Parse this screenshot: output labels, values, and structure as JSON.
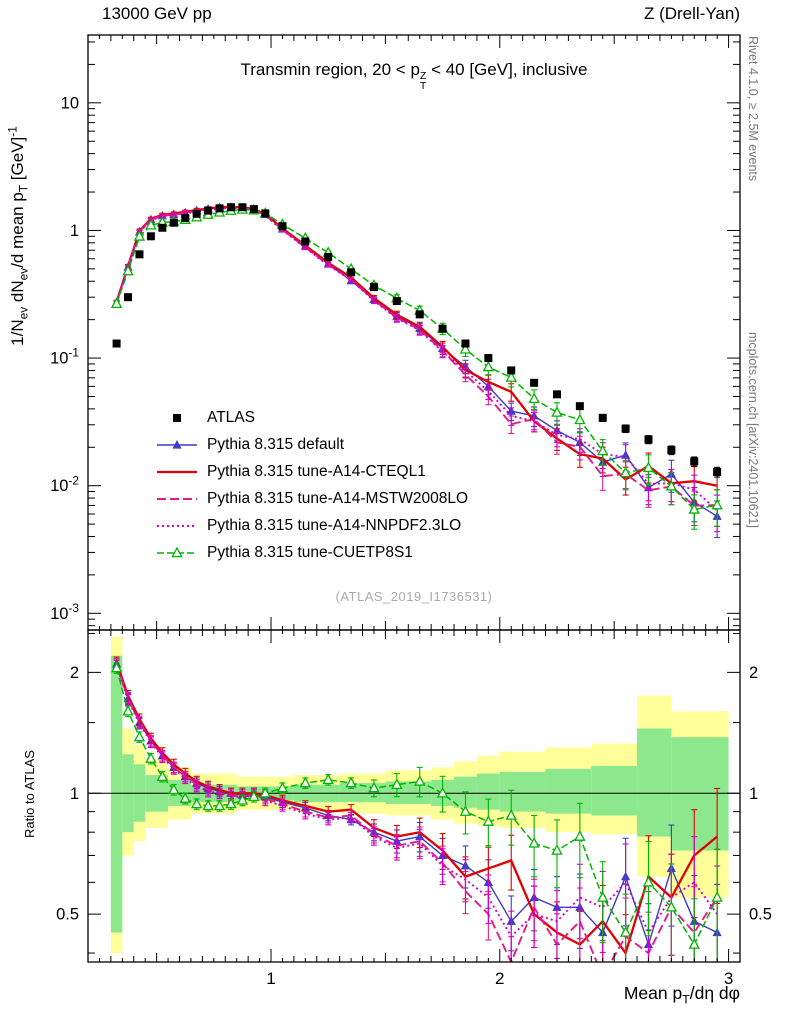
{
  "header": {
    "left": "13000 GeV pp",
    "right": "Z (Drell-Yan)"
  },
  "side_captions": {
    "top_right": "Rivet 4.1.0, ≥ 2.5M events",
    "bottom_right": "mcplots.cern.ch [arXiv:2401.10621]"
  },
  "watermark": "(ATLAS_2019_I1736531)",
  "chart_data": {
    "type": "line",
    "title_tex": "Transmin region, 20 < p_{T}^{Z} < 40 [GeV], inclusive",
    "xlabel_tex": "Mean p_{T}/dη dφ",
    "ylabel_tex": "1/N_{ev} dN_{ev}/d mean p_{T} [GeV]^{-1}",
    "ratio_ylabel": "Ratio to ATLAS",
    "x_range": [
      0.2,
      3.05
    ],
    "y_range_log": [
      0.00074,
      34
    ],
    "ratio_range_log": [
      0.38,
      2.55
    ],
    "x_major_ticks": [
      1,
      2,
      3
    ],
    "y_ticks": [
      {
        "v": 10,
        "label": "10"
      },
      {
        "v": 1,
        "label": "1"
      },
      {
        "v": 0.1,
        "label": "10^{-1}"
      },
      {
        "v": 0.01,
        "label": "10^{-2}"
      },
      {
        "v": 0.001,
        "label": "10^{-3}"
      }
    ],
    "ratio_ticks": [
      {
        "v": 2,
        "label": "2"
      },
      {
        "v": 1,
        "label": "1"
      },
      {
        "v": 0.5,
        "label": "0.5"
      }
    ],
    "ratio_minor_ticks": [
      0.4,
      0.6,
      0.7,
      0.8,
      0.9,
      1.5,
      2.5
    ],
    "x": [
      0.325,
      0.375,
      0.425,
      0.475,
      0.525,
      0.575,
      0.625,
      0.675,
      0.725,
      0.775,
      0.825,
      0.875,
      0.925,
      0.975,
      1.05,
      1.15,
      1.25,
      1.35,
      1.45,
      1.55,
      1.65,
      1.75,
      1.85,
      1.95,
      2.05,
      2.15,
      2.25,
      2.35,
      2.45,
      2.55,
      2.65,
      2.75,
      2.85,
      2.95
    ],
    "atlas_values": [
      0.13,
      0.3,
      0.65,
      0.9,
      1.05,
      1.15,
      1.25,
      1.35,
      1.43,
      1.49,
      1.52,
      1.52,
      1.47,
      1.36,
      1.08,
      0.82,
      0.62,
      0.47,
      0.36,
      0.28,
      0.22,
      0.17,
      0.13,
      0.1,
      0.08,
      0.064,
      0.052,
      0.042,
      0.034,
      0.028,
      0.023,
      0.019,
      0.0155,
      0.0128
    ],
    "series": [
      {
        "label": "ATLAS",
        "color": "#000000",
        "marker": "square",
        "lwidth": 0,
        "dash": ""
      },
      {
        "label": "Pythia 8.315 default",
        "color": "#3c3cc8",
        "marker": "triangle",
        "lwidth": 1.4,
        "dash": "",
        "ratio": [
          2.1,
          1.72,
          1.5,
          1.35,
          1.24,
          1.16,
          1.1,
          1.06,
          1.03,
          1.01,
          1.0,
          0.99,
          1.0,
          0.98,
          0.95,
          0.92,
          0.88,
          0.86,
          0.8,
          0.76,
          0.78,
          0.7,
          0.66,
          0.6,
          0.48,
          0.55,
          0.52,
          0.52,
          0.45,
          0.62,
          0.42,
          0.65,
          0.48,
          0.45
        ]
      },
      {
        "label": "Pythia 8.315 tune-A14-CTEQL1",
        "color": "#e10000",
        "marker": "",
        "lwidth": 2.3,
        "dash": "",
        "ratio": [
          2.12,
          1.75,
          1.53,
          1.37,
          1.26,
          1.18,
          1.12,
          1.07,
          1.04,
          1.02,
          1.0,
          1.0,
          1.0,
          0.99,
          0.96,
          0.93,
          0.9,
          0.91,
          0.82,
          0.78,
          0.8,
          0.72,
          0.62,
          0.65,
          0.68,
          0.5,
          0.45,
          0.42,
          0.48,
          0.4,
          0.62,
          0.55,
          0.7,
          0.78
        ]
      },
      {
        "label": "Pythia 8.315 tune-A14-MSTW2008LO",
        "color": "#e41a8c",
        "marker": "",
        "lwidth": 1.9,
        "dash": "9,4",
        "ratio": [
          2.1,
          1.73,
          1.51,
          1.35,
          1.24,
          1.16,
          1.1,
          1.05,
          1.02,
          1.0,
          0.99,
          0.98,
          0.99,
          0.97,
          0.94,
          0.9,
          0.87,
          0.88,
          0.79,
          0.74,
          0.76,
          0.67,
          0.57,
          0.5,
          0.38,
          0.52,
          0.42,
          0.48,
          0.35,
          0.44,
          0.4,
          0.52,
          0.45,
          0.55
        ]
      },
      {
        "label": "Pythia 8.315 tune-A14-NNPDF2.3LO",
        "color": "#cf00cf",
        "marker": "",
        "lwidth": 1.9,
        "dash": "2,3",
        "ratio": [
          2.08,
          1.71,
          1.49,
          1.34,
          1.23,
          1.15,
          1.09,
          1.04,
          1.01,
          1.0,
          0.98,
          0.98,
          0.99,
          0.96,
          0.93,
          0.89,
          0.86,
          0.87,
          0.78,
          0.73,
          0.75,
          0.66,
          0.61,
          0.55,
          0.44,
          0.5,
          0.48,
          0.55,
          0.52,
          0.6,
          0.45,
          0.55,
          0.6,
          0.5
        ]
      },
      {
        "label": "Pythia 8.315 tune-CUETP8S1",
        "color": "#00b400",
        "marker": "triangle-open",
        "lwidth": 1.5,
        "dash": "7,3",
        "ratio": [
          2.05,
          1.6,
          1.38,
          1.22,
          1.1,
          1.02,
          0.97,
          0.94,
          0.93,
          0.93,
          0.94,
          0.96,
          0.98,
          1.0,
          1.03,
          1.06,
          1.08,
          1.06,
          1.03,
          1.05,
          1.07,
          1.0,
          0.9,
          0.85,
          0.88,
          0.75,
          0.72,
          0.78,
          0.55,
          0.45,
          0.6,
          0.52,
          0.42,
          0.55
        ]
      }
    ],
    "bands": {
      "yellow_color": "#ffff99",
      "green_color": "#8de88d",
      "segments": [
        [
          0.3,
          0.35,
          0.45,
          2.2,
          0.4,
          2.45
        ],
        [
          0.35,
          0.4,
          0.8,
          1.25,
          0.7,
          1.45
        ],
        [
          0.4,
          0.45,
          0.85,
          1.18,
          0.76,
          1.32
        ],
        [
          0.45,
          0.55,
          0.9,
          1.11,
          0.82,
          1.22
        ],
        [
          0.55,
          0.65,
          0.93,
          1.08,
          0.86,
          1.16
        ],
        [
          0.65,
          0.85,
          0.95,
          1.05,
          0.89,
          1.12
        ],
        [
          0.85,
          1.1,
          0.96,
          1.04,
          0.91,
          1.1
        ],
        [
          1.1,
          1.3,
          0.95,
          1.05,
          0.9,
          1.11
        ],
        [
          1.3,
          1.5,
          0.95,
          1.06,
          0.89,
          1.12
        ],
        [
          1.5,
          1.7,
          0.94,
          1.07,
          0.88,
          1.14
        ],
        [
          1.7,
          1.8,
          0.93,
          1.08,
          0.86,
          1.16
        ],
        [
          1.8,
          1.9,
          0.92,
          1.1,
          0.84,
          1.2
        ],
        [
          1.9,
          2.0,
          0.91,
          1.12,
          0.83,
          1.24
        ],
        [
          2.0,
          2.2,
          0.9,
          1.13,
          0.82,
          1.27
        ],
        [
          2.2,
          2.4,
          0.89,
          1.15,
          0.8,
          1.3
        ],
        [
          2.4,
          2.6,
          0.88,
          1.17,
          0.79,
          1.33
        ],
        [
          2.6,
          2.75,
          0.78,
          1.45,
          0.62,
          1.75
        ],
        [
          2.75,
          3.0,
          0.72,
          1.38,
          0.55,
          1.6
        ]
      ]
    }
  }
}
